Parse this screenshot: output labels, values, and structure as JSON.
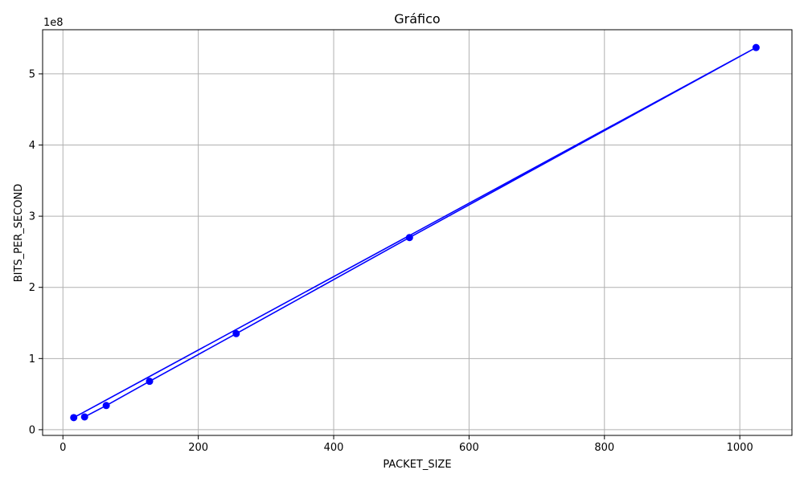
{
  "chart_data": {
    "type": "line",
    "title": "Gráfico",
    "xlabel": "PACKET_SIZE",
    "ylabel": "BITS_PER_SECOND",
    "y_offset_label": "1e8",
    "xlim": [
      -30,
      1077
    ],
    "ylim": [
      -0.08,
      5.62
    ],
    "y_scale_note": "values in units of 1e8",
    "x_ticks": [
      0,
      200,
      400,
      600,
      800,
      1000
    ],
    "x_tick_labels": [
      "0",
      "200",
      "400",
      "600",
      "800",
      "1000"
    ],
    "y_ticks": [
      0,
      1,
      2,
      3,
      4,
      5
    ],
    "y_tick_labels": [
      "0",
      "1",
      "2",
      "3",
      "4",
      "5"
    ],
    "grid": true,
    "series": [
      {
        "color": "#0000ff",
        "marker": "circle",
        "x": [
          16,
          1024,
          512,
          256,
          128,
          64,
          32
        ],
        "y": [
          0.17,
          5.37,
          2.7,
          1.35,
          0.68,
          0.34,
          0.18
        ]
      }
    ]
  }
}
